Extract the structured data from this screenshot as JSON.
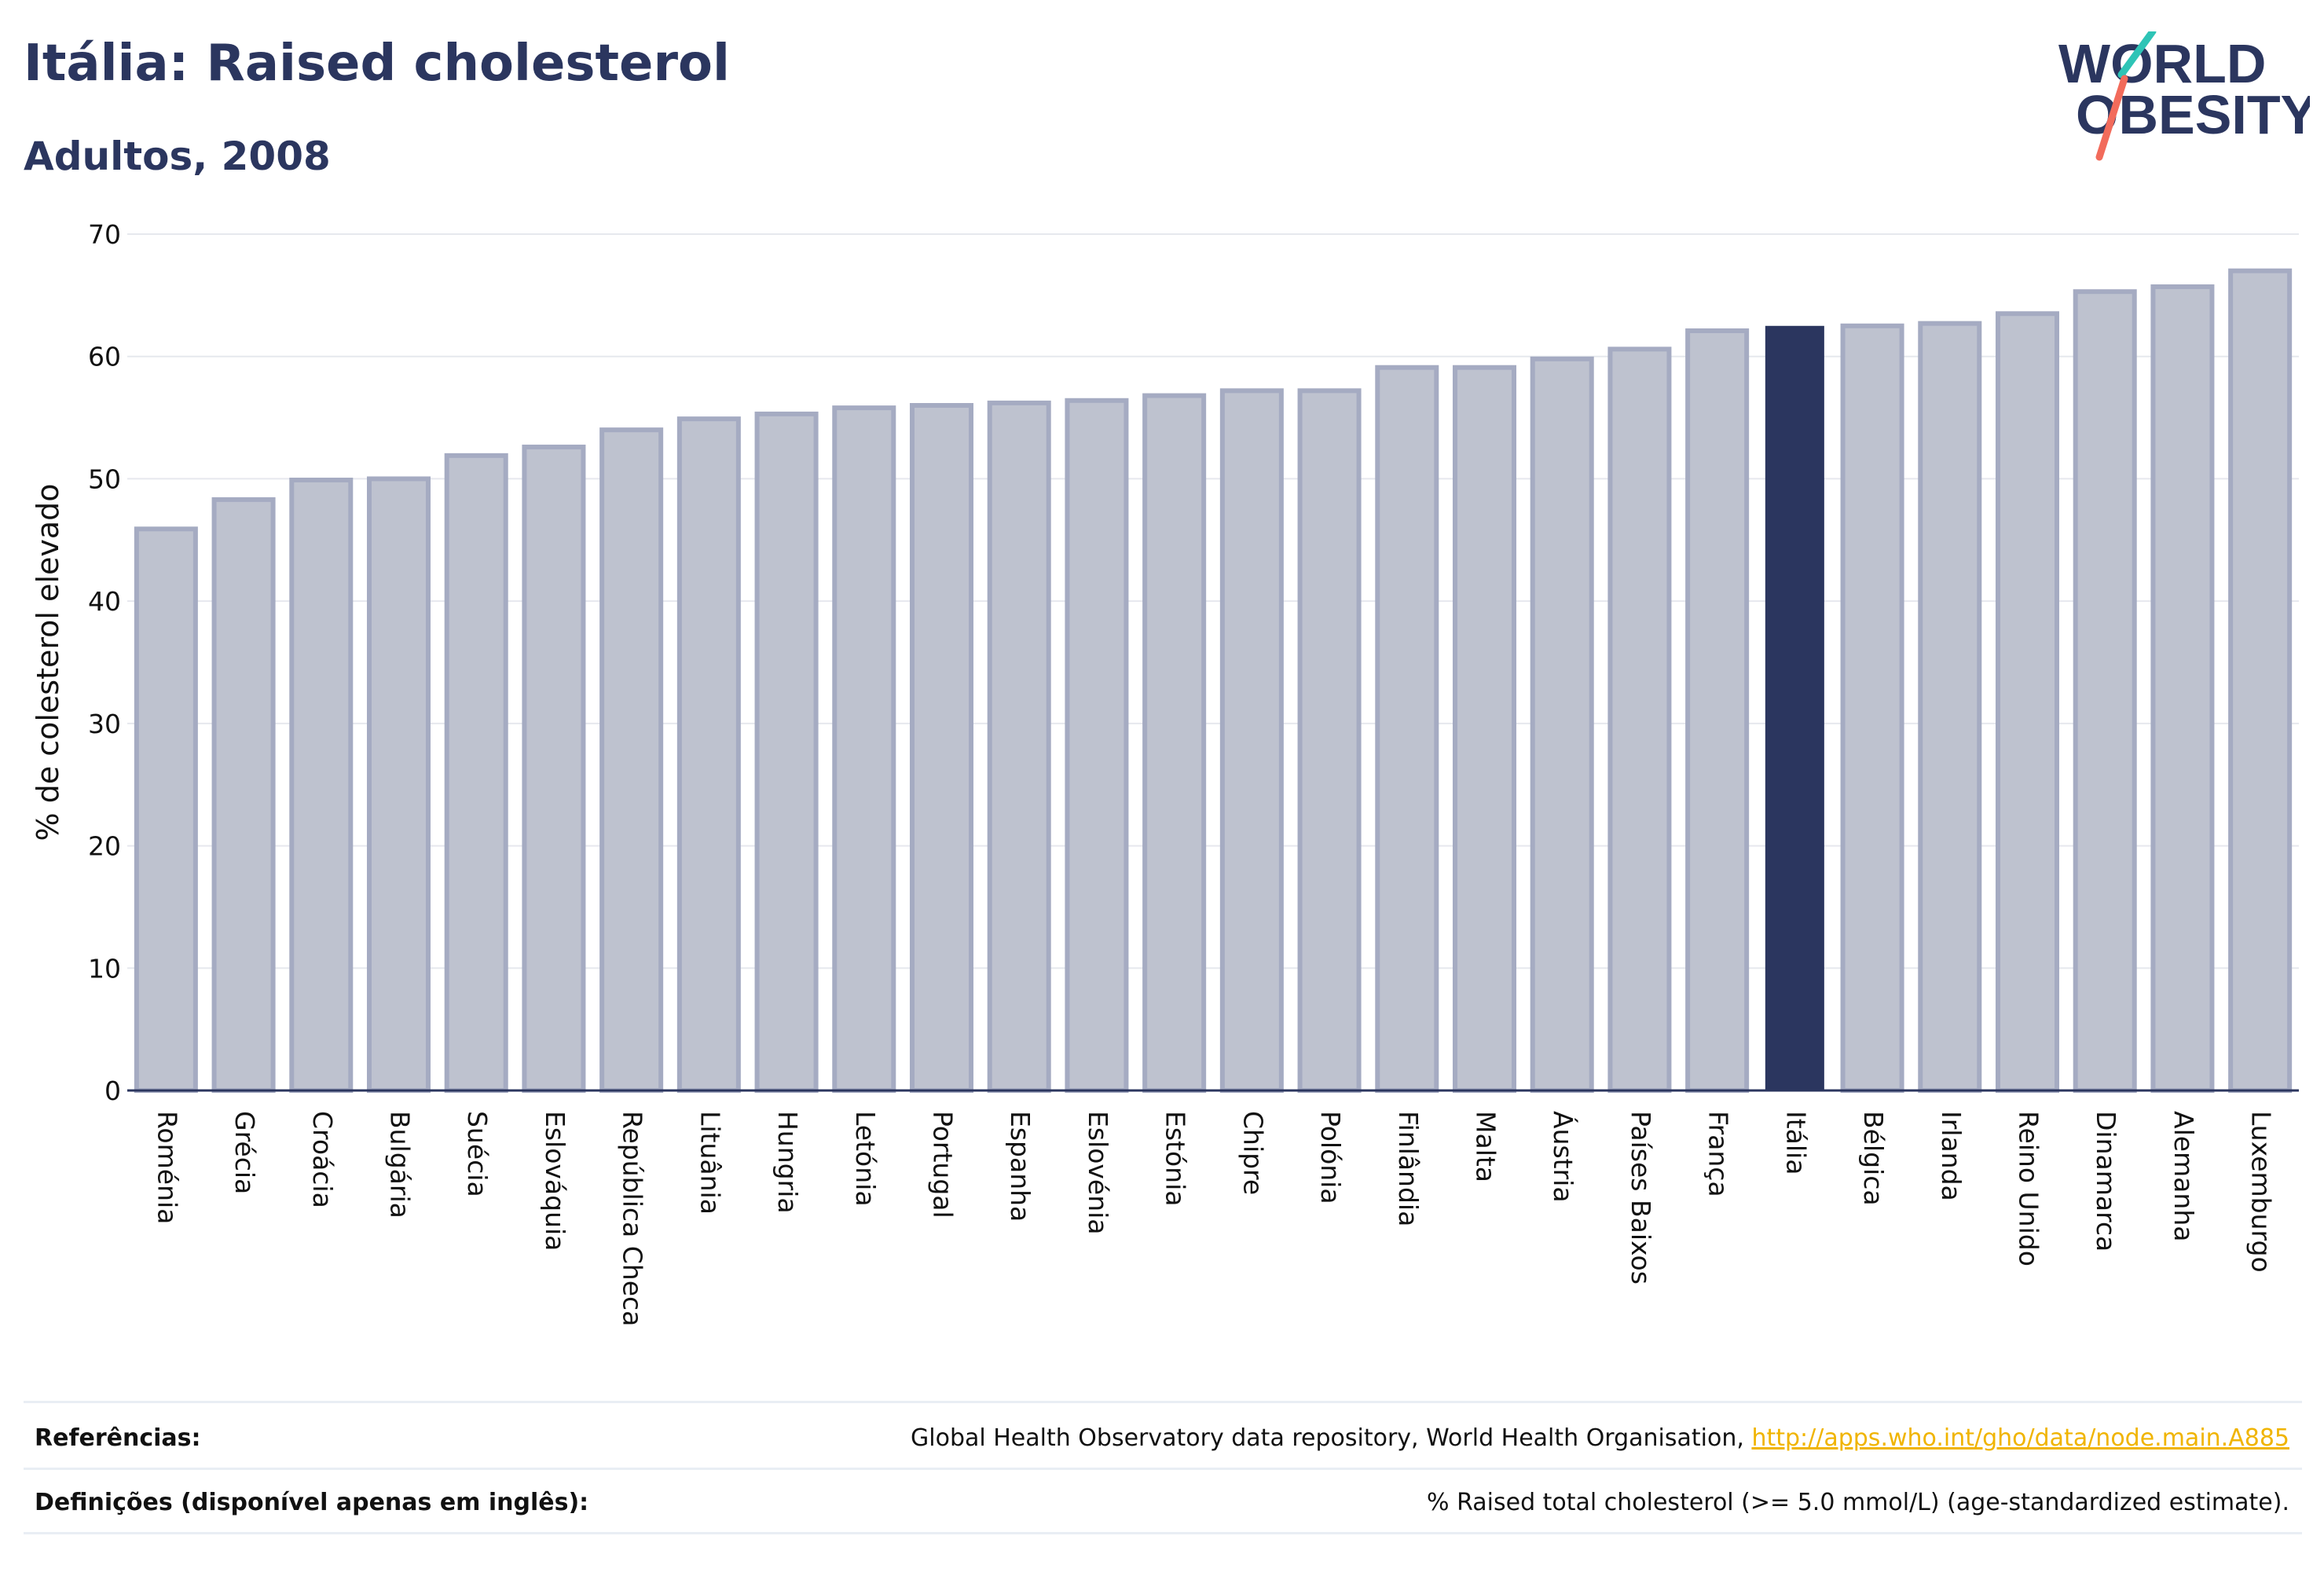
{
  "header": {
    "title": "Itália: Raised cholesterol",
    "subtitle": "Adultos, 2008"
  },
  "logo": {
    "line1": "WORLD",
    "line2": "OBESITY",
    "accent_teal": "#2ec4b6",
    "accent_coral": "#f26b5b"
  },
  "colors": {
    "highlight": "#2b365f",
    "bar": "#bec2cf",
    "bar_outline": "#a5abc2"
  },
  "chart_data": {
    "type": "bar",
    "ylabel": "% de colesterol elevado",
    "xlabel": "",
    "ylim": [
      0,
      70
    ],
    "yticks": [
      0,
      10,
      20,
      30,
      40,
      50,
      60,
      70
    ],
    "grid": true,
    "highlight": "Itália",
    "categories": [
      "Roménia",
      "Grécia",
      "Croácia",
      "Bulgária",
      "Suécia",
      "Eslováquia",
      "República Checa",
      "Lituânia",
      "Hungria",
      "Letónia",
      "Portugal",
      "Espanha",
      "Eslovénia",
      "Estónia",
      "Chipre",
      "Polónia",
      "Finlândia",
      "Malta",
      "Áustria",
      "Países Baixos",
      "França",
      "Itália",
      "Bélgica",
      "Irlanda",
      "Reino Unido",
      "Dinamarca",
      "Alemanha",
      "Luxemburgo"
    ],
    "values": [
      45.9,
      48.3,
      49.9,
      50.0,
      51.9,
      52.6,
      54.0,
      54.9,
      55.3,
      55.8,
      56.0,
      56.2,
      56.4,
      56.8,
      57.2,
      57.2,
      59.1,
      59.1,
      59.8,
      60.6,
      62.1,
      62.5,
      62.5,
      62.7,
      63.5,
      65.3,
      65.7,
      67.0
    ]
  },
  "footer": {
    "references_label": "Referências:",
    "references_text": "Global Health Observatory data repository, World Health Organisation, ",
    "references_link": "http://apps.who.int/gho/data/node.main.A885",
    "definitions_label": "Definições (disponível apenas em inglês):",
    "definitions_text": "% Raised total cholesterol (>= 5.0 mmol/L) (age-standardized estimate)."
  }
}
